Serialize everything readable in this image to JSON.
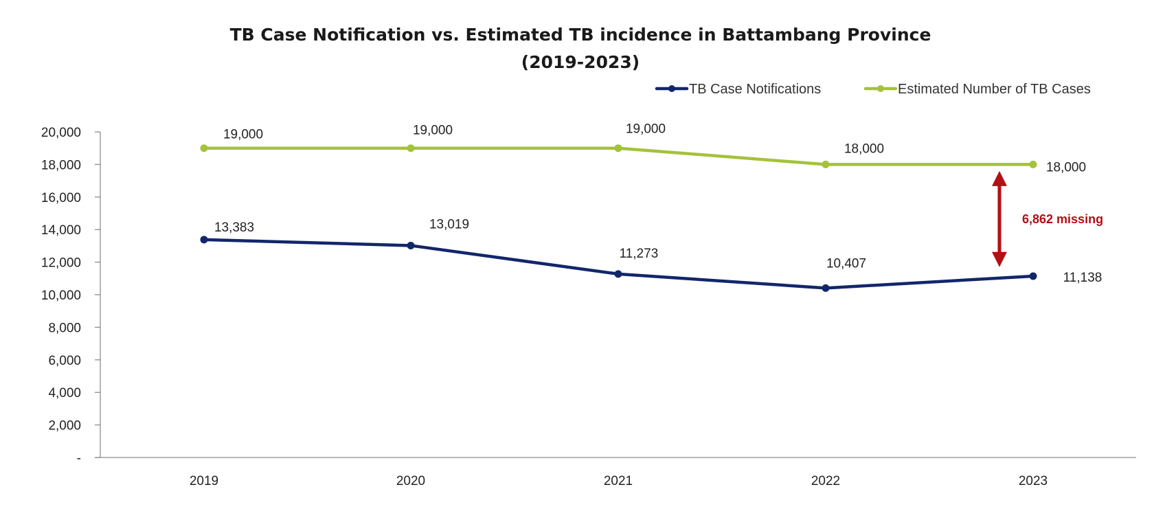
{
  "chart_data": {
    "type": "line",
    "title_line1": "TB Case Notification vs. Estimated TB incidence in Battambang Province",
    "title_line2": "(2019-2023)",
    "x": [
      "2019",
      "2020",
      "2021",
      "2022",
      "2023"
    ],
    "ylim": [
      0,
      20000
    ],
    "yticks": [
      {
        "value": 0,
        "label": "-"
      },
      {
        "value": 2000,
        "label": "2,000"
      },
      {
        "value": 4000,
        "label": "4,000"
      },
      {
        "value": 6000,
        "label": "6,000"
      },
      {
        "value": 8000,
        "label": "8,000"
      },
      {
        "value": 10000,
        "label": "10,000"
      },
      {
        "value": 12000,
        "label": "12,000"
      },
      {
        "value": 14000,
        "label": "14,000"
      },
      {
        "value": 16000,
        "label": "16,000"
      },
      {
        "value": 18000,
        "label": "18,000"
      },
      {
        "value": 20000,
        "label": "20,000"
      }
    ],
    "grid": false,
    "legend_position": "top-right",
    "series": [
      {
        "name": "TB Case Notifications",
        "color": "#13266b",
        "values": [
          13383,
          13019,
          11273,
          10407,
          11138
        ],
        "labels": [
          "13,383",
          "13,019",
          "11,273",
          "10,407",
          "11,138"
        ]
      },
      {
        "name": "Estimated Number of TB Cases",
        "color": "#a4c23a",
        "values": [
          19000,
          19000,
          19000,
          18000,
          18000
        ],
        "labels": [
          "19,000",
          "19,000",
          "19,000",
          "18,000",
          "18,000"
        ]
      }
    ],
    "annotation": {
      "text": "6,862 missing",
      "color": "#b30f14",
      "from_value": 17600,
      "to_value": 11700
    }
  }
}
